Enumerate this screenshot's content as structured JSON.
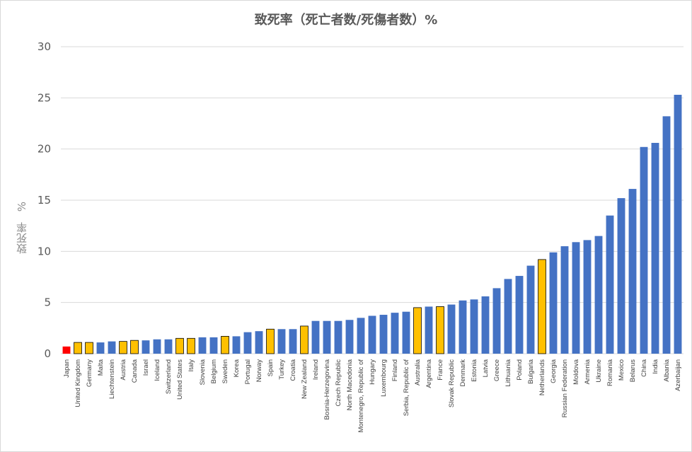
{
  "chart_data": {
    "type": "bar",
    "title": "致死率（死亡者数/死傷者数）%",
    "ylabel": "致死率　%",
    "xlabel": "",
    "ylim": [
      0,
      30
    ],
    "yticks": [
      0,
      5,
      10,
      15,
      20,
      25,
      30
    ],
    "grid": true,
    "colors": {
      "default": "#4472c4",
      "highlight": "#ffc000",
      "japan": "#ff0000"
    },
    "categories": [
      "Japan",
      "United Kingdom",
      "Germany",
      "Malta",
      "Liechtenstein",
      "Austria",
      "Canada",
      "Israel",
      "Iceland",
      "Switzerland",
      "United States",
      "Italy",
      "Slovenia",
      "Belgium",
      "Sweden",
      "Korea",
      "Portugal",
      "Norway",
      "Spain",
      "Turkey",
      "Croatia",
      "New Zealand",
      "Ireland",
      "Bosnia-Herzegovina",
      "Czech Republic",
      "North Macedonia",
      "Montenegro, Republic of",
      "Hungary",
      "Luxembourg",
      "Finland",
      "Serbia, Republic of",
      "Australia",
      "Argentina",
      "France",
      "Slovak Republic",
      "Denmark",
      "Estonia",
      "Latvia",
      "Greece",
      "Lithuania",
      "Poland",
      "Bulgaria",
      "Netherlands",
      "Georgia",
      "Russian Federation",
      "Moldova",
      "Armenia",
      "Ukraine",
      "Romania",
      "Mexico",
      "Belarus",
      "China",
      "India",
      "Albania",
      "Azerbaijan"
    ],
    "values": [
      0.7,
      1.1,
      1.1,
      1.1,
      1.2,
      1.2,
      1.3,
      1.3,
      1.4,
      1.4,
      1.5,
      1.5,
      1.6,
      1.6,
      1.7,
      1.7,
      2.1,
      2.2,
      2.4,
      2.4,
      2.4,
      2.7,
      3.2,
      3.2,
      3.2,
      3.3,
      3.5,
      3.7,
      3.8,
      4.0,
      4.1,
      4.5,
      4.6,
      4.6,
      4.8,
      5.2,
      5.3,
      5.6,
      6.4,
      7.3,
      7.6,
      8.6,
      9.2,
      9.9,
      10.5,
      10.9,
      11.1,
      11.5,
      13.5,
      15.2,
      16.1,
      20.2,
      20.6,
      23.2,
      25.3
    ],
    "bar_colors": [
      "japan",
      "highlight",
      "highlight",
      "default",
      "default",
      "highlight",
      "highlight",
      "default",
      "default",
      "default",
      "highlight",
      "highlight",
      "default",
      "default",
      "highlight",
      "default",
      "default",
      "default",
      "highlight",
      "default",
      "default",
      "highlight",
      "default",
      "default",
      "default",
      "default",
      "default",
      "default",
      "default",
      "default",
      "default",
      "highlight",
      "default",
      "highlight",
      "default",
      "default",
      "default",
      "default",
      "default",
      "default",
      "default",
      "default",
      "highlight",
      "default",
      "default",
      "default",
      "default",
      "default",
      "default",
      "default",
      "default",
      "default",
      "default",
      "default",
      "default"
    ]
  }
}
